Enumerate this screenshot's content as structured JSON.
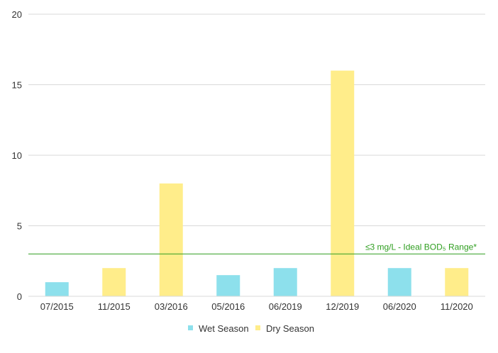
{
  "chart_data": {
    "type": "bar",
    "categories": [
      "07/2015",
      "11/2015",
      "03/2016",
      "05/2016",
      "06/2019",
      "12/2019",
      "06/2020",
      "11/2020"
    ],
    "values": [
      1,
      2,
      8,
      1.5,
      2,
      16,
      2,
      2
    ],
    "season": [
      "Wet Season",
      "Dry Season",
      "Dry Season",
      "Wet Season",
      "Wet Season",
      "Dry Season",
      "Wet Season",
      "Dry Season"
    ],
    "series": [
      {
        "name": "Wet Season",
        "color": "#8de0ec"
      },
      {
        "name": "Dry Season",
        "color": "#ffed8a"
      }
    ],
    "ylim": [
      0,
      20
    ],
    "yticks": [
      0,
      5,
      10,
      15,
      20
    ],
    "grid": true,
    "legend": "bottom",
    "reference_line": {
      "value": 3,
      "label": "≤3 mg/L - Ideal BOD₅ Range*",
      "color": "#2e9e1f"
    },
    "title": "",
    "xlabel": "",
    "ylabel": ""
  }
}
